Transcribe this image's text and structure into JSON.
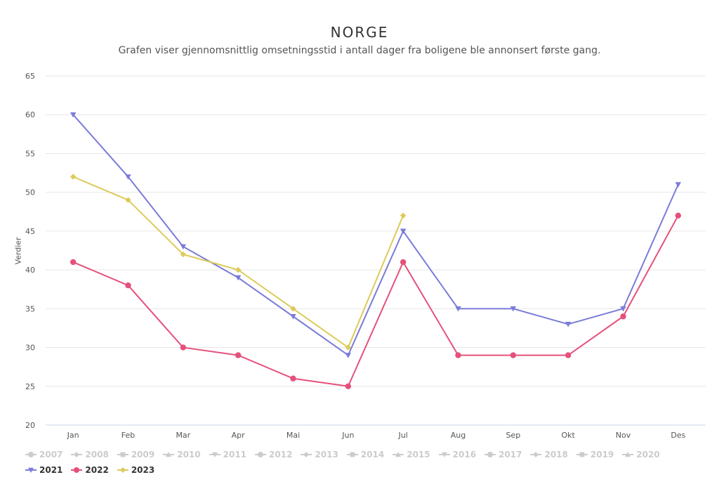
{
  "title": "NORGE",
  "subtitle": "Grafen viser gjennomsnittlig omsetningsstid i antall dager fra boligene ble annonsert første gang.",
  "chart_data": {
    "type": "line",
    "ylabel": "Verdier",
    "xlabel": "",
    "ylim": [
      20,
      65
    ],
    "yticks": [
      20,
      25,
      30,
      35,
      40,
      45,
      50,
      55,
      60,
      65
    ],
    "grid": true,
    "legend_position": "bottom-left",
    "categories": [
      "Jan",
      "Feb",
      "Mar",
      "Apr",
      "Mai",
      "Jun",
      "Jul",
      "Aug",
      "Sep",
      "Okt",
      "Nov",
      "Des"
    ],
    "series": [
      {
        "name": "2021",
        "color": "#7b7bd9",
        "marker": "triangle-down",
        "values": [
          60,
          52,
          43,
          39,
          34,
          29,
          45,
          35,
          35,
          33,
          35,
          51
        ]
      },
      {
        "name": "2022",
        "color": "#e5517b",
        "marker": "circle",
        "values": [
          41,
          38,
          30,
          29,
          26,
          25,
          41,
          29,
          29,
          29,
          34,
          47
        ]
      },
      {
        "name": "2023",
        "color": "#dccb5a",
        "marker": "diamond",
        "values": [
          52,
          49,
          42,
          40,
          35,
          30,
          47,
          null,
          null,
          null,
          null,
          null
        ]
      }
    ]
  },
  "legend": {
    "inactive": [
      {
        "label": "2007",
        "marker": "circle"
      },
      {
        "label": "2008",
        "marker": "diamond"
      },
      {
        "label": "2009",
        "marker": "square"
      },
      {
        "label": "2010",
        "marker": "triangle"
      },
      {
        "label": "2011",
        "marker": "triangle-down"
      },
      {
        "label": "2012",
        "marker": "circle"
      },
      {
        "label": "2013",
        "marker": "diamond"
      },
      {
        "label": "2014",
        "marker": "square"
      },
      {
        "label": "2015",
        "marker": "triangle"
      },
      {
        "label": "2016",
        "marker": "triangle-down"
      },
      {
        "label": "2017",
        "marker": "circle"
      },
      {
        "label": "2018",
        "marker": "diamond"
      },
      {
        "label": "2019",
        "marker": "square"
      },
      {
        "label": "2020",
        "marker": "triangle"
      }
    ],
    "inactive_color": "#cccccc"
  }
}
